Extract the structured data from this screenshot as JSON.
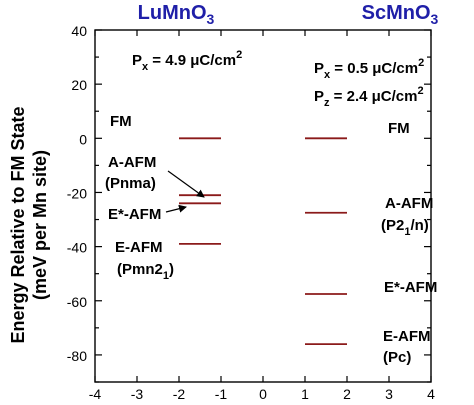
{
  "chart_data": {
    "type": "scatter",
    "style": "energy-level-diagram",
    "ylabel_line1": "Energy Relative to FM State",
    "ylabel_line2": "(meV per Mn site)",
    "xlim": [
      -4,
      4
    ],
    "ylim": [
      -90,
      40
    ],
    "x_ticks": [
      -4,
      -3,
      -2,
      -1,
      0,
      1,
      2,
      3,
      4
    ],
    "y_ticks": [
      40,
      20,
      0,
      -20,
      -40,
      -60,
      -80
    ],
    "grid": false,
    "level_color": "#8b1a1a",
    "header_color": "#1f1fa8",
    "compounds": [
      {
        "name": "LuMnO",
        "name_sub": "3",
        "polarization": [
          {
            "symbol": "P",
            "sub": "x",
            "value": " = 4.9 μC/cm",
            "sup": "2"
          }
        ],
        "x_range": [
          -2,
          -1
        ],
        "levels": [
          {
            "label": "FM",
            "value": 0
          },
          {
            "label": "A-AFM",
            "value": -21
          },
          {
            "label": "E*-AFM",
            "value": -24
          },
          {
            "label": "E-AFM",
            "value": -39
          }
        ],
        "annotations": [
          {
            "text": "FM"
          },
          {
            "text": "A-AFM"
          },
          {
            "text": "(Pnma)"
          },
          {
            "text": "E*-AFM"
          },
          {
            "text": "E-AFM"
          },
          {
            "text": "(Pmn2",
            "sub": "1",
            "tail": ")"
          }
        ]
      },
      {
        "name": "ScMnO",
        "name_sub": "3",
        "polarization": [
          {
            "symbol": "P",
            "sub": "x",
            "value": " = 0.5 μC/cm",
            "sup": "2"
          },
          {
            "symbol": "P",
            "sub": "z",
            "value": " = 2.4 μC/cm",
            "sup": "2"
          }
        ],
        "x_range": [
          1,
          2
        ],
        "levels": [
          {
            "label": "FM",
            "value": 0
          },
          {
            "label": "A-AFM",
            "value": -27.5
          },
          {
            "label": "E*-AFM",
            "value": -57.5
          },
          {
            "label": "E-AFM",
            "value": -76
          }
        ],
        "annotations": [
          {
            "text": "FM"
          },
          {
            "text": "A-AFM"
          },
          {
            "text": "(P2",
            "sub": "1",
            "tail": "/n)"
          },
          {
            "text": "E*-AFM"
          },
          {
            "text": "E-AFM"
          },
          {
            "text": "(Pc)"
          }
        ]
      }
    ]
  }
}
